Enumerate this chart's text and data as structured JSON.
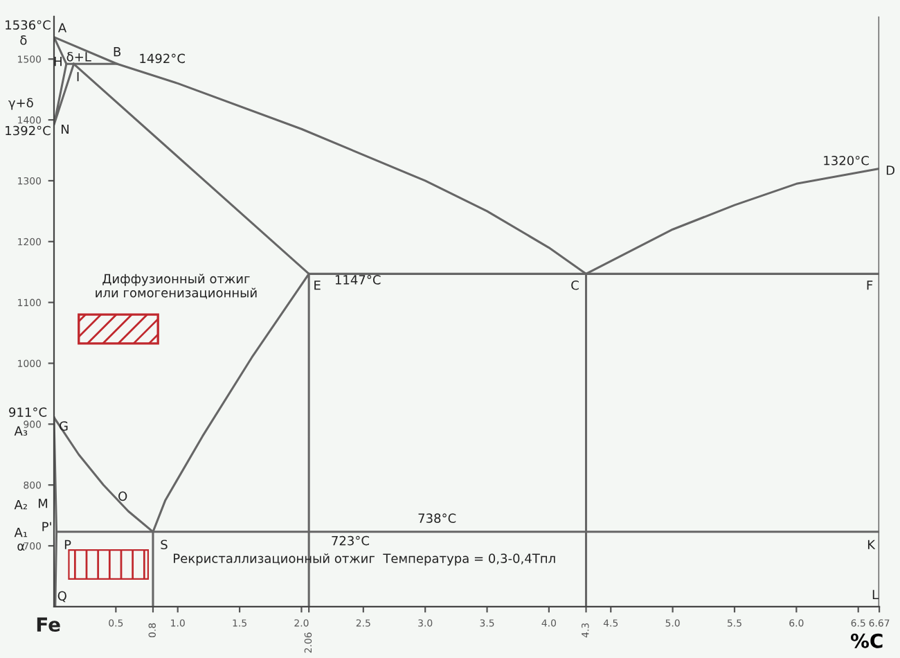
{
  "chart_data": {
    "type": "line",
    "xlabel": "%C",
    "marker": "none",
    "line_style": "solid",
    "grid": false,
    "legend": false,
    "xlim": [
      0,
      6.67
    ],
    "ylim": [
      600,
      1570
    ],
    "xticks": [
      0.5,
      {
        "value": 0.8,
        "label": null
      },
      {
        "value": 1,
        "label": "1.0"
      },
      1.5,
      {
        "value": 2,
        "label": "2.0"
      },
      {
        "value": 2.06,
        "label": null
      },
      2.5,
      {
        "value": 3,
        "label": "3.0"
      },
      3.5,
      {
        "value": 4,
        "label": "4.0"
      },
      {
        "value": 4.3,
        "label": null
      },
      4.5,
      {
        "value": 5,
        "label": "5.0"
      },
      5.5,
      {
        "value": 6,
        "label": "6.0"
      },
      6.5,
      6.67
    ],
    "yticks": [
      700,
      800,
      900,
      1000,
      1100,
      1200,
      1300,
      1400,
      1500
    ],
    "series": [
      {
        "color": "#666666",
        "x": [
          0,
          0.51,
          1.0,
          2.0,
          3.0,
          3.5,
          4.0,
          4.3
        ],
        "values": [
          1536,
          1492,
          1460,
          1385,
          1300,
          1250,
          1190,
          1147
        ]
      },
      {
        "color": "#666666",
        "x": [
          6.67,
          6.0,
          5.5,
          5.0,
          4.3,
          4.3
        ],
        "values": [
          1320,
          1295,
          1260,
          1220,
          1147,
          600
        ]
      },
      {
        "color": "#666666",
        "x": [
          0,
          0.1
        ],
        "values": [
          1536,
          1492
        ]
      },
      {
        "color": "#666666",
        "x": [
          0.1,
          0.51
        ],
        "values": [
          1492,
          1492
        ]
      },
      {
        "color": "#666666",
        "x": [
          0.1,
          0,
          0.16
        ],
        "values": [
          1492,
          1392,
          1492
        ]
      },
      {
        "color": "#666666",
        "x": [
          0.16,
          2.06
        ],
        "values": [
          1492,
          1147
        ]
      },
      {
        "color": "#666666",
        "x": [
          2.06,
          6.67
        ],
        "values": [
          1147,
          1147
        ]
      },
      {
        "color": "#666666",
        "x": [
          0.8,
          0.9,
          1.2,
          1.6,
          2.06,
          2.06
        ],
        "values": [
          723,
          775,
          880,
          1010,
          1147,
          600
        ]
      },
      {
        "color": "#666666",
        "x": [
          0,
          0.2,
          0.4,
          0.6,
          0.8,
          0.8
        ],
        "values": [
          911,
          850,
          800,
          757,
          723,
          600
        ]
      },
      {
        "color": "#666666",
        "x": [
          0,
          0.02,
          0.01
        ],
        "values": [
          911,
          723,
          600
        ]
      },
      {
        "color": "#666666",
        "x": [
          0.02,
          6.67
        ],
        "values": [
          723,
          723
        ]
      },
      {
        "color": "#666666",
        "x": [
          6.67,
          6.67
        ],
        "values": [
          600,
          1570
        ]
      }
    ],
    "annotations": [
      {
        "text": "1536°C",
        "x": 0,
        "y": 1536
      },
      {
        "text": "A",
        "x": 0,
        "y": 1536
      },
      "δ",
      "δ+L",
      {
        "text": "B",
        "x": 0.51,
        "y": 1492
      },
      "1492°C",
      {
        "text": "H",
        "x": 0.1,
        "y": 1492
      },
      {
        "text": "I",
        "x": 0.16,
        "y": 1492
      },
      "γ+δ",
      {
        "text": "N",
        "x": 0,
        "y": 1392
      },
      {
        "text": "1392°C",
        "x": 0,
        "y": 1392
      },
      {
        "text": "E",
        "x": 2.06,
        "y": 1147
      },
      "1147°C",
      {
        "text": "C",
        "x": 4.3,
        "y": 1147
      },
      {
        "text": "F",
        "x": 6.67,
        "y": 1147
      },
      {
        "text": "D",
        "x": 6.67,
        "y": 1320
      },
      {
        "text": "1320°C",
        "x": 6.67,
        "y": 1320
      },
      {
        "text": "G",
        "x": 0,
        "y": 911
      },
      {
        "text": "911°C",
        "x": 0,
        "y": 911
      },
      "A₃",
      "A₂",
      {
        "text": "M",
        "x": 0,
        "y": 768
      },
      {
        "text": "O",
        "x": 0.6,
        "y": 757
      },
      "A₁",
      {
        "text": "P'",
        "x": 0.02,
        "y": 723
      },
      "α",
      {
        "text": "P",
        "x": 0.02,
        "y": 723
      },
      {
        "text": "S",
        "x": 0.8,
        "y": 723
      },
      "723°C",
      "738°C",
      {
        "text": "K",
        "x": 6.67,
        "y": 723
      },
      {
        "text": "L",
        "x": 6.67,
        "y": 600
      },
      {
        "text": "Q",
        "x": 0.01,
        "y": 600
      },
      "Fe",
      "Диффузионный отжиг\nили гомогенизационный",
      "Рекристаллизационный отжиг  Температура = 0,3-0,4Тпл",
      {
        "text": "0.8",
        "x": 0.8,
        "y": 600
      },
      {
        "text": "2.06",
        "x": 2.06,
        "y": 600
      },
      {
        "text": "4.3",
        "x": 4.3,
        "y": 600
      }
    ]
  }
}
